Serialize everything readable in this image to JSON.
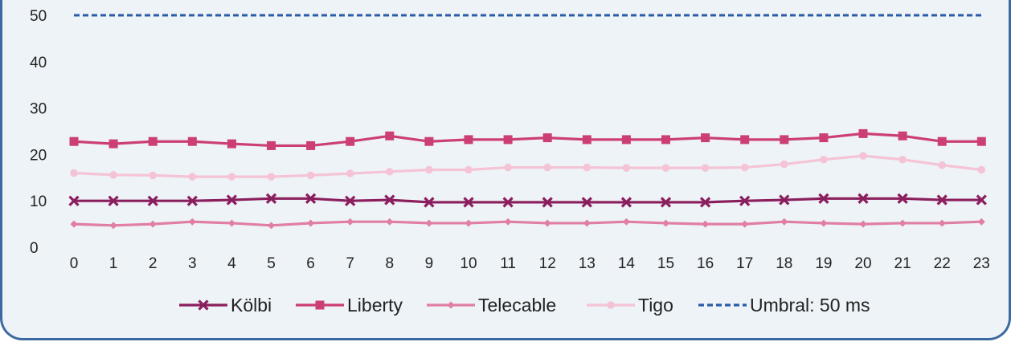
{
  "chart_data": {
    "type": "line",
    "title": "",
    "xlabel": "",
    "ylabel": "",
    "x": [
      "0",
      "1",
      "2",
      "3",
      "4",
      "5",
      "6",
      "7",
      "8",
      "9",
      "10",
      "11",
      "12",
      "13",
      "14",
      "15",
      "16",
      "17",
      "18",
      "19",
      "20",
      "21",
      "22",
      "23"
    ],
    "ylim": [
      0,
      50
    ],
    "yticks": [
      "0",
      "10",
      "20",
      "30",
      "40",
      "50"
    ],
    "grid": false,
    "legend_position": "bottom",
    "series": [
      {
        "name": "Kölbi",
        "color": "#8b1f5e",
        "marker": "x-icon",
        "values": [
          10.0,
          10.0,
          10.0,
          10.0,
          10.2,
          10.5,
          10.5,
          10.0,
          10.2,
          9.7,
          9.7,
          9.7,
          9.7,
          9.7,
          9.7,
          9.7,
          9.7,
          10.0,
          10.2,
          10.5,
          10.5,
          10.5,
          10.2,
          10.2
        ]
      },
      {
        "name": "Liberty",
        "color": "#cc3f74",
        "marker": "square-icon",
        "values": [
          22.8,
          22.3,
          22.8,
          22.8,
          22.3,
          21.9,
          21.9,
          22.8,
          24.0,
          22.8,
          23.2,
          23.2,
          23.6,
          23.2,
          23.2,
          23.2,
          23.6,
          23.2,
          23.2,
          23.6,
          24.5,
          24.0,
          22.8,
          22.8
        ]
      },
      {
        "name": "Telecable",
        "color": "#e07ea3",
        "marker": "diamond-icon",
        "values": [
          5.0,
          4.7,
          5.0,
          5.5,
          5.2,
          4.7,
          5.2,
          5.5,
          5.5,
          5.2,
          5.2,
          5.5,
          5.2,
          5.2,
          5.5,
          5.2,
          5.0,
          5.0,
          5.5,
          5.2,
          5.0,
          5.2,
          5.2,
          5.5
        ]
      },
      {
        "name": "Tigo",
        "color": "#f5c3d6",
        "marker": "circle-icon",
        "values": [
          16.0,
          15.6,
          15.5,
          15.2,
          15.2,
          15.2,
          15.5,
          15.9,
          16.3,
          16.7,
          16.7,
          17.2,
          17.2,
          17.2,
          17.1,
          17.1,
          17.1,
          17.2,
          17.9,
          18.9,
          19.7,
          18.9,
          17.7,
          16.7
        ]
      },
      {
        "name": "Umbral: 50 ms",
        "color": "#2a5ca8",
        "marker": "none",
        "dashed": true,
        "values": [
          50,
          50,
          50,
          50,
          50,
          50,
          50,
          50,
          50,
          50,
          50,
          50,
          50,
          50,
          50,
          50,
          50,
          50,
          50,
          50,
          50,
          50,
          50,
          50
        ]
      }
    ]
  }
}
